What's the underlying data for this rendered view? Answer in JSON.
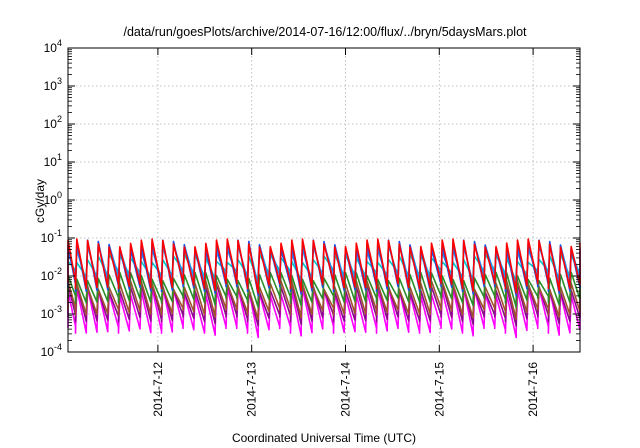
{
  "chart_data": {
    "type": "line",
    "title": "/data/run/goesPlots/archive/2014-07-16/12:00/flux/../bryn/5daysMars.plot",
    "xlabel": "Coordinated Universal Time (UTC)",
    "ylabel": "cGy/day",
    "y_scale": "log",
    "ylim": [
      0.0001,
      10000
    ],
    "y_ticks": [
      {
        "base": "10",
        "exp": "-4",
        "value": 0.0001
      },
      {
        "base": "10",
        "exp": "-3",
        "value": 0.001
      },
      {
        "base": "10",
        "exp": "-2",
        "value": 0.01
      },
      {
        "base": "10",
        "exp": "-1",
        "value": 0.1
      },
      {
        "base": "10",
        "exp": "0",
        "value": 1
      },
      {
        "base": "10",
        "exp": "1",
        "value": 10
      },
      {
        "base": "10",
        "exp": "2",
        "value": 100
      },
      {
        "base": "10",
        "exp": "3",
        "value": 1000
      },
      {
        "base": "10",
        "exp": "4",
        "value": 10000
      }
    ],
    "xlim": [
      "2014-07-11T01:00",
      "2014-07-16T12:00"
    ],
    "x_ticks": [
      {
        "label": "2014-7-12",
        "date": "2014-07-12T00:00"
      },
      {
        "label": "2014-7-13",
        "date": "2014-07-13T00:00"
      },
      {
        "label": "2014-7-14",
        "date": "2014-07-14T00:00"
      },
      {
        "label": "2014-7-15",
        "date": "2014-07-15T00:00"
      },
      {
        "label": "2014-7-16",
        "date": "2014-07-16T00:00"
      }
    ],
    "grid": true,
    "legend": "none",
    "sawtooth_period_hours": 2.75,
    "series": [
      {
        "color": "#ff0000",
        "peak": 0.075,
        "trough": 0.006
      },
      {
        "color": "#2050e0",
        "peak": 0.07,
        "trough": 0.005
      },
      {
        "color": "#1f8fff",
        "peak": 0.055,
        "trough": 0.009
      },
      {
        "color": "#00c8c8",
        "peak": 0.03,
        "trough": 0.012
      },
      {
        "color": "#2a8c2a",
        "peak": 0.01,
        "trough": 0.0025
      },
      {
        "color": "#a0522d",
        "peak": 0.006,
        "trough": 0.0012
      },
      {
        "color": "#8b0a8b",
        "peak": 0.005,
        "trough": 0.0008
      },
      {
        "color": "#ff00ff",
        "peak": 0.004,
        "trough": 0.0004
      }
    ]
  }
}
